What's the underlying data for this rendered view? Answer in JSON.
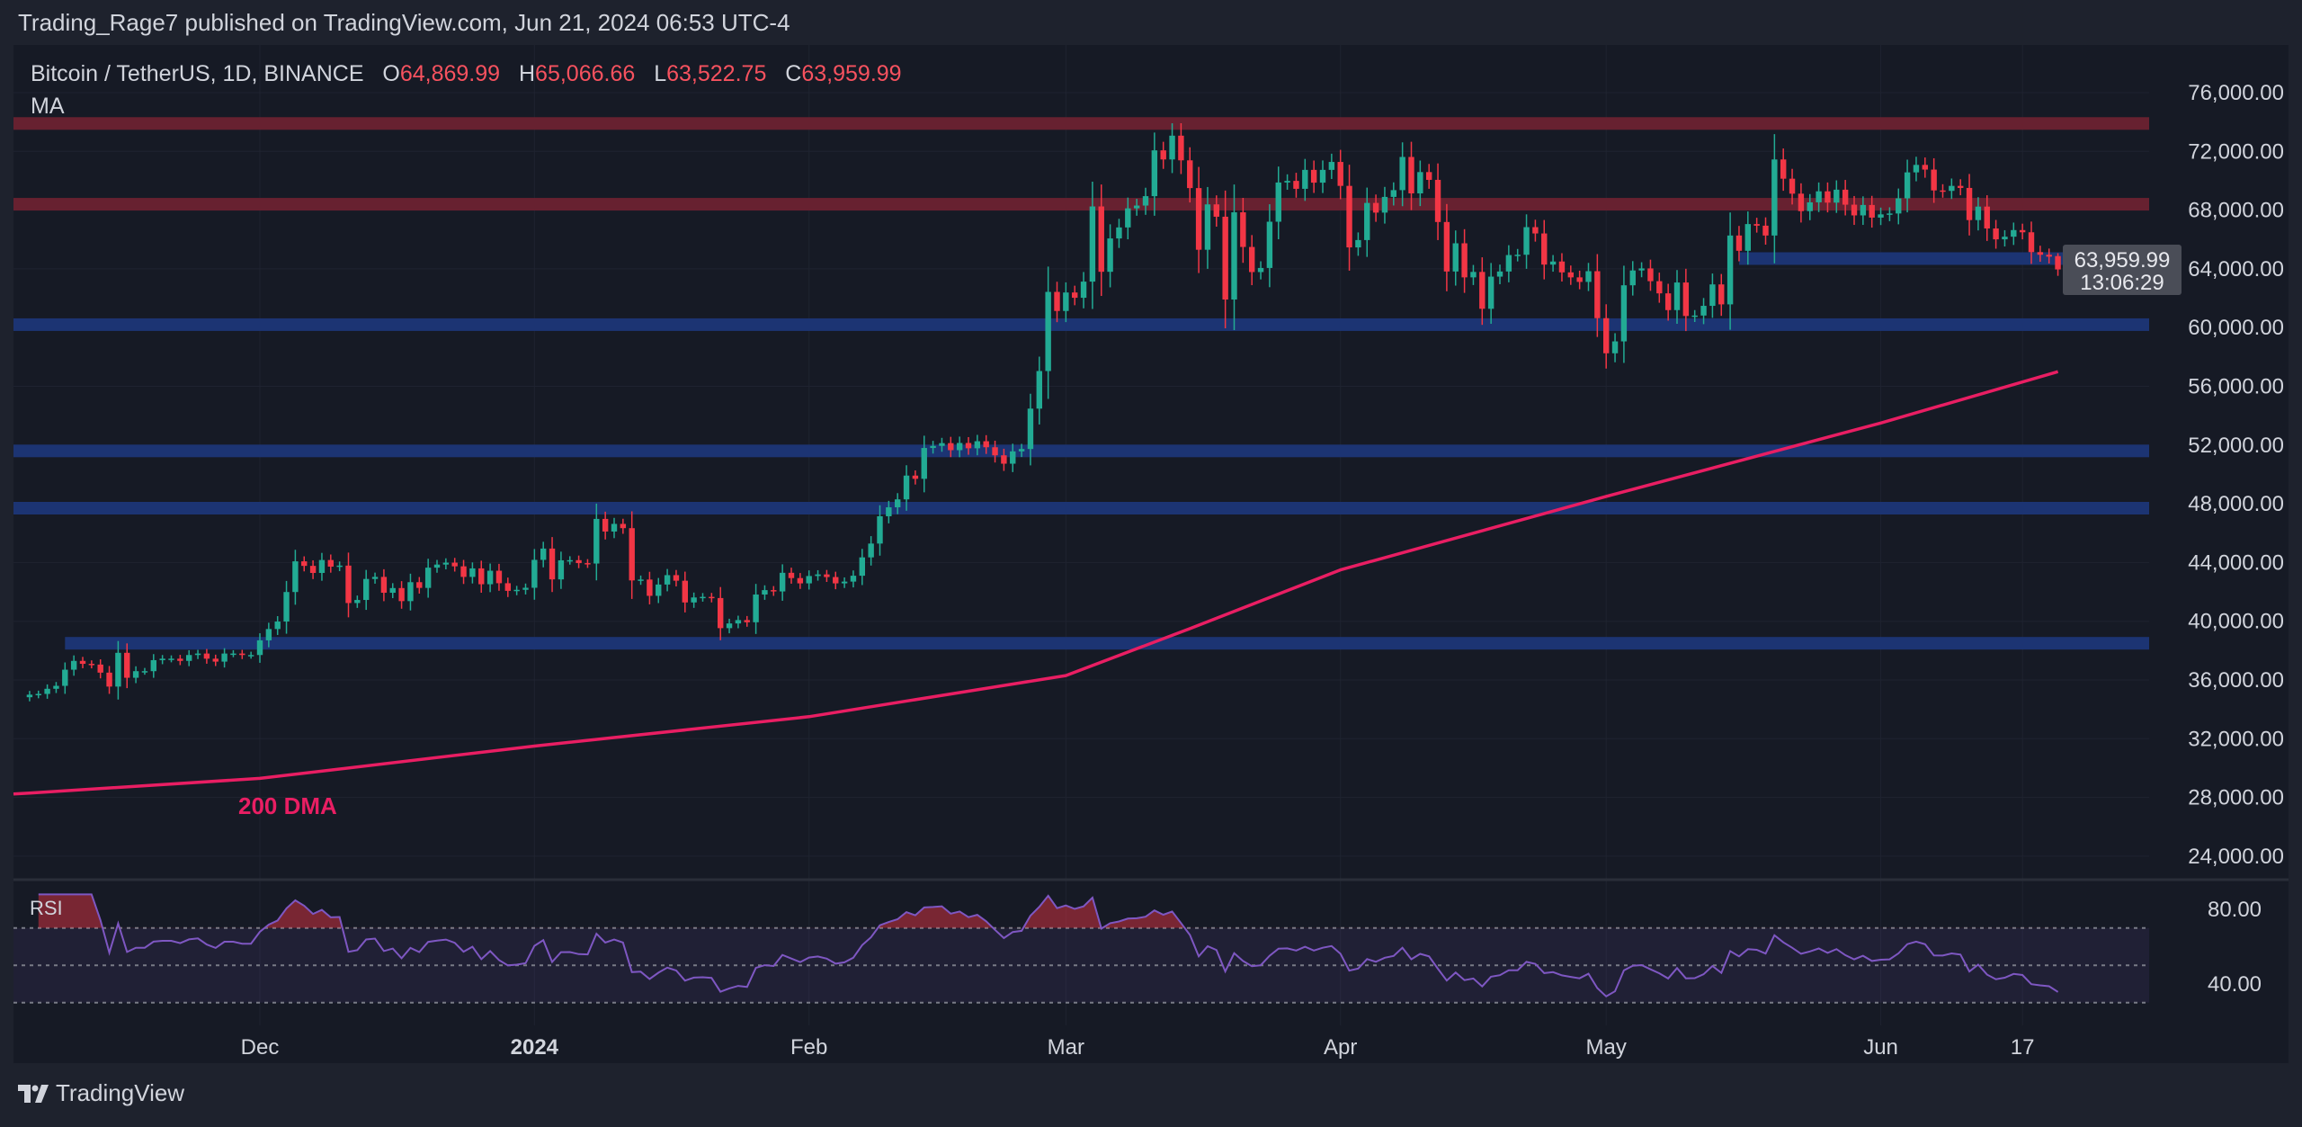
{
  "header": {
    "published": "Trading_Rage7 published on TradingView.com, Jun 21, 2024 06:53 UTC-4"
  },
  "legend": {
    "symbol": "Bitcoin / TetherUS, 1D, BINANCE",
    "o_label": "O",
    "o": "64,869.99",
    "h_label": "H",
    "h": "65,066.66",
    "l_label": "L",
    "l": "63,522.75",
    "c_label": "C",
    "c": "63,959.99",
    "indicator": "MA"
  },
  "footer": {
    "brand": "TradingView"
  },
  "colors": {
    "up": "#22ab94",
    "down": "#f23645",
    "ma": "#e91e63",
    "rsi": "#7e57c2",
    "support_band": "#1c3677",
    "resistance_band": "#6b2230",
    "background": "#161a25"
  },
  "chart_data": {
    "type": "candlestick",
    "ylim": [
      22000,
      78000
    ],
    "yticks": [
      "76,000.00",
      "72,000.00",
      "68,000.00",
      "64,000.00",
      "60,000.00",
      "56,000.00",
      "52,000.00",
      "48,000.00",
      "44,000.00",
      "40,000.00",
      "36,000.00",
      "32,000.00",
      "28,000.00",
      "24,000.00"
    ],
    "ytick_values": [
      76000,
      72000,
      68000,
      64000,
      60000,
      56000,
      52000,
      48000,
      44000,
      40000,
      36000,
      32000,
      28000,
      24000
    ],
    "xticks": [
      {
        "label": "Dec",
        "date": "2023-12-01"
      },
      {
        "label": "2024",
        "date": "2024-01-01",
        "bold": true
      },
      {
        "label": "Feb",
        "date": "2024-02-01"
      },
      {
        "label": "Mar",
        "date": "2024-03-01"
      },
      {
        "label": "Apr",
        "date": "2024-04-01"
      },
      {
        "label": "May",
        "date": "2024-05-01"
      },
      {
        "label": "Jun",
        "date": "2024-06-01"
      },
      {
        "label": "17",
        "date": "2024-06-17"
      }
    ],
    "last_price": {
      "price": "63,959.99",
      "countdown": "13:06:29",
      "value": 63959.99
    },
    "last_bar": {
      "open": 64869.99,
      "high": 65066.66,
      "low": 63522.75,
      "close": 63959.99
    },
    "closes_by_month": [
      {
        "month": "2023-11",
        "first_day": 5,
        "closes": [
          35000,
          35050,
          35400,
          35600,
          36700,
          37300,
          37100,
          37050,
          36500,
          35550,
          37850,
          36150,
          36600,
          36600,
          37350,
          37450,
          37450,
          37300,
          37700,
          37800,
          37450,
          37250,
          37800,
          37800,
          37700,
          37700
        ]
      },
      {
        "month": "2023-12",
        "first_day": 1,
        "closes": [
          38700,
          39470,
          39980,
          41990,
          44080,
          43770,
          43290,
          44170,
          43720,
          43790,
          41240,
          41450,
          42880,
          43020,
          41940,
          42260,
          41370,
          42660,
          42270,
          43650,
          43860,
          43990,
          43740,
          43020,
          43600,
          42520,
          43440,
          42590,
          42070,
          42140,
          42280
        ]
      },
      {
        "month": "2024-01",
        "first_day": 1,
        "closes": [
          44180,
          44950,
          42850,
          44150,
          44160,
          43960,
          43930,
          46970,
          46110,
          46630,
          46340,
          42780,
          42840,
          41730,
          42500,
          43140,
          42760,
          41280,
          41620,
          41660,
          41580,
          39530,
          39850,
          40080,
          39930,
          41820,
          42120,
          42030,
          43300,
          42940,
          42580
        ]
      },
      {
        "month": "2024-02",
        "first_day": 1,
        "closes": [
          43080,
          43190,
          43010,
          42580,
          42700,
          43100,
          44350,
          45290,
          47150,
          47760,
          48300,
          49920,
          49700,
          51800,
          51940,
          52130,
          51650,
          52140,
          51780,
          52260,
          51850,
          51300,
          50730,
          51570,
          51730,
          54480,
          57040,
          62430,
          61130
        ]
      },
      {
        "month": "2024-03",
        "first_day": 1,
        "closes": [
          62390,
          62030,
          63130,
          68250,
          63800,
          66070,
          66820,
          68120,
          68310,
          68950,
          72070,
          71450,
          73070,
          71390,
          69500,
          65300,
          68390,
          67550,
          61910,
          67850,
          65490,
          63780,
          64060,
          67210,
          69880,
          69990,
          69450,
          70740,
          69870,
          70740,
          71280
        ]
      },
      {
        "month": "2024-04",
        "first_day": 1,
        "closes": [
          69650,
          65460,
          65960,
          68490,
          67830,
          68900,
          69360,
          71620,
          69140,
          70590,
          70060,
          67190,
          63820,
          65740,
          63420,
          63790,
          61280,
          63470,
          63820,
          64940,
          64960,
          66840,
          66410,
          64290,
          64500,
          63760,
          63420,
          63110,
          63840,
          60640
        ]
      },
      {
        "month": "2024-05",
        "first_day": 1,
        "closes": [
          58250,
          59060,
          62880,
          63890,
          64030,
          63160,
          62330,
          61190,
          63070,
          60790,
          60820,
          61480,
          62940,
          61580,
          66270,
          65230,
          67050,
          66940,
          66270,
          71450,
          70140,
          69120,
          67930,
          68530,
          69280,
          68510,
          69390,
          68370,
          67640,
          68350,
          67490
        ]
      },
      {
        "month": "2024-06",
        "first_day": 1,
        "closes": [
          67710,
          67770,
          68800,
          70570,
          71080,
          70760,
          69340,
          69310,
          69650,
          69510,
          67320,
          68240,
          66750,
          66010,
          66190,
          66640,
          66490,
          65140,
          64960,
          64830,
          63959.99
        ]
      }
    ],
    "ma200": {
      "label": "200 DMA",
      "points": [
        [
          "2023-11-05",
          28300
        ],
        [
          "2023-12-01",
          29300
        ],
        [
          "2024-01-01",
          31500
        ],
        [
          "2024-02-01",
          33500
        ],
        [
          "2024-03-01",
          36300
        ],
        [
          "2024-03-15",
          39500
        ],
        [
          "2024-04-01",
          43500
        ],
        [
          "2024-05-01",
          48500
        ],
        [
          "2024-06-01",
          53500
        ],
        [
          "2024-06-21",
          57000
        ]
      ]
    },
    "zones": [
      {
        "kind": "resistance",
        "price": 73900
      },
      {
        "kind": "resistance",
        "price": 68400
      },
      {
        "kind": "support",
        "price": 64700,
        "from": "2024-05-16"
      },
      {
        "kind": "support",
        "price": 60200
      },
      {
        "kind": "support",
        "price": 51600
      },
      {
        "kind": "support",
        "price": 47700
      },
      {
        "kind": "support",
        "price": 38500,
        "from": "2023-11-09"
      }
    ],
    "rsi": {
      "label": "RSI",
      "period": 14,
      "levels": [
        70,
        50,
        30
      ],
      "yticks": [
        "80.00",
        "40.00"
      ],
      "ytick_values": [
        80,
        40
      ]
    }
  }
}
